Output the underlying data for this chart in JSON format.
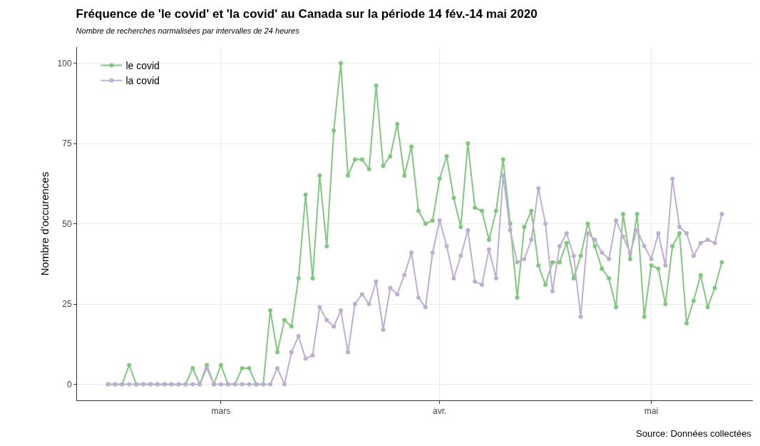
{
  "chart_data": {
    "type": "line",
    "title": "Fréquence de 'le covid' et 'la covid' au Canada sur la période 14 fév.-14 mai 2020",
    "subtitle": "Nombre de recherches normalisées par intervalles de 24 heures",
    "ylabel": "Nombre d'occurences",
    "annotations": [
      "Source: Données collectées"
    ],
    "categories": [
      null,
      null,
      null,
      null,
      null,
      null,
      null,
      null,
      null,
      null,
      null,
      null,
      null,
      null,
      null,
      null,
      "mars",
      null,
      null,
      null,
      null,
      null,
      null,
      null,
      null,
      null,
      null,
      null,
      null,
      null,
      null,
      null,
      null,
      null,
      null,
      null,
      null,
      null,
      null,
      null,
      null,
      null,
      null,
      null,
      null,
      null,
      null,
      "avr.",
      null,
      null,
      null,
      null,
      null,
      null,
      null,
      null,
      null,
      null,
      null,
      null,
      null,
      null,
      null,
      null,
      null,
      null,
      null,
      null,
      null,
      null,
      null,
      null,
      null,
      null,
      null,
      null,
      null,
      "mai",
      null,
      null,
      null,
      null,
      null,
      null,
      null,
      null,
      null,
      null
    ],
    "series": [
      {
        "name": "le covid",
        "color": "#7fc97f",
        "values": [
          0,
          0,
          0,
          6,
          0,
          0,
          0,
          0,
          0,
          0,
          0,
          0,
          5,
          0,
          6,
          0,
          6,
          0,
          0,
          5,
          5,
          0,
          0,
          23,
          10,
          20,
          18,
          33,
          59,
          33,
          65,
          43,
          79,
          100,
          65,
          70,
          70,
          67,
          93,
          68,
          71,
          81,
          65,
          74,
          54,
          50,
          51,
          64,
          71,
          58,
          49,
          75,
          55,
          54,
          45,
          54,
          70,
          50,
          27,
          49,
          54,
          37,
          31,
          38,
          38,
          44,
          33,
          40,
          50,
          43,
          36,
          33,
          24,
          53,
          39,
          53,
          21,
          37,
          36,
          25,
          43,
          47,
          19,
          26,
          34,
          24,
          30,
          38
        ]
      },
      {
        "name": "la covid",
        "color": "#beaed4",
        "values": [
          0,
          0,
          0,
          0,
          0,
          0,
          0,
          0,
          0,
          0,
          0,
          0,
          0,
          0,
          5,
          0,
          0,
          0,
          0,
          0,
          0,
          0,
          0,
          0,
          5,
          0,
          10,
          15,
          8,
          9,
          24,
          20,
          18,
          23,
          10,
          25,
          28,
          25,
          32,
          17,
          30,
          28,
          34,
          41,
          27,
          24,
          41,
          51,
          43,
          33,
          40,
          48,
          32,
          31,
          42,
          33,
          65,
          48,
          38,
          39,
          45,
          61,
          50,
          29,
          43,
          47,
          40,
          21,
          47,
          45,
          41,
          39,
          51,
          46,
          41,
          48,
          43,
          39,
          47,
          37,
          64,
          49,
          47,
          40,
          44,
          45,
          44,
          53
        ]
      }
    ],
    "ylim": [
      -5,
      105
    ],
    "yticks": [
      0,
      25,
      50,
      75,
      100
    ],
    "grid": true,
    "legend": "top left",
    "marker": "circle",
    "line_style": "solid"
  }
}
